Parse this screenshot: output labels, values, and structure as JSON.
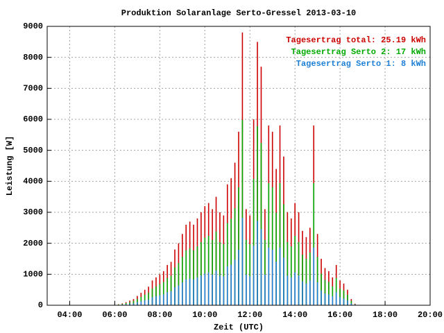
{
  "chart_data": {
    "type": "impulse",
    "title": "Produktion Solaranlage Serto-Gressel 2013-03-10",
    "x_label": "Zeit (UTC)",
    "y_label": "Leistung [W]",
    "x": [
      370,
      380,
      390,
      400,
      410,
      420,
      430,
      440,
      450,
      460,
      470,
      480,
      490,
      500,
      510,
      520,
      530,
      540,
      550,
      560,
      570,
      580,
      590,
      600,
      610,
      620,
      630,
      640,
      650,
      660,
      670,
      680,
      690,
      700,
      710,
      720,
      730,
      740,
      750,
      760,
      770,
      780,
      790,
      800,
      810,
      820,
      830,
      840,
      850,
      860,
      870,
      880,
      890,
      900,
      910,
      920,
      930,
      940,
      950,
      960,
      970,
      980,
      990,
      1000
    ],
    "series": [
      {
        "name": "Tagesertrag total: 25.19 kWh",
        "color": "#cc0000",
        "values": [
          30,
          60,
          100,
          150,
          200,
          300,
          400,
          500,
          600,
          800,
          900,
          1000,
          1100,
          1300,
          1400,
          1800,
          2000,
          2300,
          2600,
          2700,
          2600,
          2800,
          3000,
          3200,
          3300,
          3100,
          3500,
          3000,
          2900,
          3900,
          4100,
          4600,
          5600,
          8800,
          3100,
          2900,
          6000,
          8500,
          7700,
          3100,
          5800,
          5600,
          4400,
          5800,
          4800,
          3000,
          2800,
          3300,
          3000,
          2400,
          2200,
          2500,
          5800,
          2300,
          1500,
          1200,
          1100,
          900,
          1300,
          800,
          700,
          500,
          200,
          50
        ]
      },
      {
        "name": "Tagesertrag Serto 2: 17 kWh",
        "color": "#00aa00",
        "values": [
          20,
          40,
          70,
          100,
          140,
          200,
          270,
          340,
          410,
          540,
          610,
          680,
          750,
          880,
          950,
          1220,
          1360,
          1560,
          1770,
          1840,
          1770,
          1900,
          2040,
          2180,
          2240,
          2110,
          2380,
          2040,
          1970,
          2650,
          2790,
          3130,
          3810,
          5980,
          2110,
          1970,
          4080,
          5780,
          5240,
          2110,
          3940,
          3810,
          2990,
          3940,
          3260,
          2040,
          1900,
          2240,
          2040,
          1630,
          1500,
          1700,
          3940,
          1560,
          1020,
          820,
          750,
          610,
          880,
          540,
          480,
          340,
          140,
          30
        ]
      },
      {
        "name": "Tagesertrag Serto 1: 8 kWh",
        "color": "#1e7fd6",
        "values": [
          10,
          20,
          30,
          50,
          60,
          100,
          130,
          160,
          190,
          260,
          290,
          320,
          350,
          420,
          450,
          580,
          640,
          740,
          830,
          860,
          830,
          900,
          960,
          1020,
          1060,
          990,
          1120,
          960,
          930,
          1250,
          1310,
          1470,
          1790,
          2820,
          990,
          930,
          1920,
          2720,
          2460,
          990,
          1860,
          1790,
          1410,
          1860,
          1540,
          960,
          900,
          1060,
          960,
          770,
          700,
          800,
          1860,
          740,
          480,
          380,
          350,
          290,
          420,
          260,
          220,
          160,
          60,
          20
        ]
      }
    ],
    "xlim": [
      180,
      1200
    ],
    "xticks": [
      {
        "value": 240,
        "label": "04:00"
      },
      {
        "value": 360,
        "label": "06:00"
      },
      {
        "value": 480,
        "label": "08:00"
      },
      {
        "value": 600,
        "label": "10:00"
      },
      {
        "value": 720,
        "label": "12:00"
      },
      {
        "value": 840,
        "label": "14:00"
      },
      {
        "value": 960,
        "label": "16:00"
      },
      {
        "value": 1080,
        "label": "18:00"
      },
      {
        "value": 1200,
        "label": "20:00"
      }
    ],
    "ylim": [
      0,
      9000
    ],
    "yticks": [
      0,
      1000,
      2000,
      3000,
      4000,
      5000,
      6000,
      7000,
      8000,
      9000
    ],
    "grid": true,
    "legend": "top-right"
  }
}
